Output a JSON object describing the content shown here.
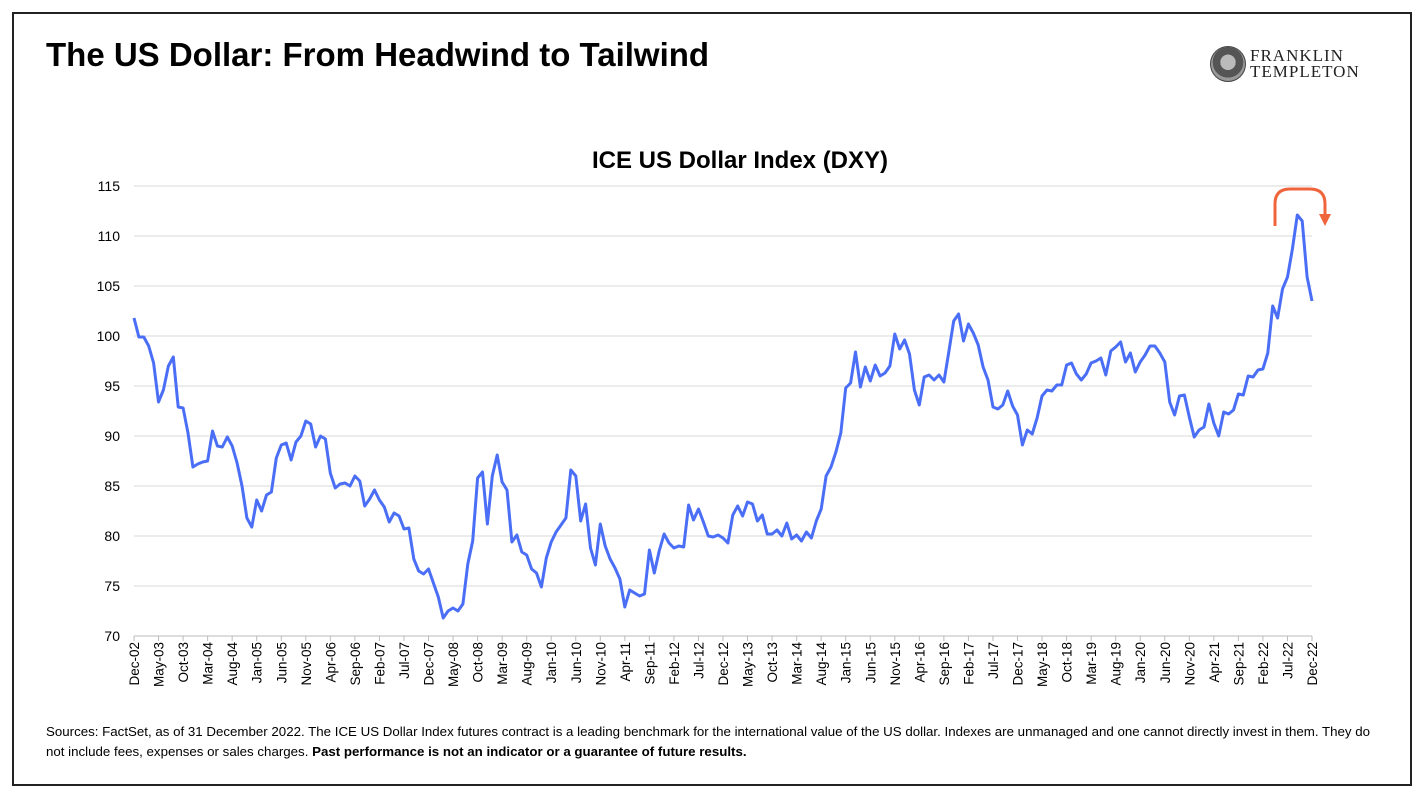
{
  "header": {
    "title": "The US Dollar: From Headwind to Tailwind",
    "logo_line1": "FRANKLIN",
    "logo_line2": "TEMPLETON"
  },
  "chart_data": {
    "type": "line",
    "title": "ICE US Dollar Index (DXY)",
    "xlabel": "",
    "ylabel": "",
    "ylim": [
      70,
      115
    ],
    "yticks": [
      "70",
      "75",
      "80",
      "85",
      "90",
      "95",
      "100",
      "105",
      "110",
      "115"
    ],
    "grid": true,
    "frequency": "monthly",
    "start": "Dec-02",
    "end": "Dec-22",
    "xtick_every_months": 5,
    "xticks": [
      "Dec-02",
      "May-03",
      "Oct-03",
      "Mar-04",
      "Aug-04",
      "Jan-05",
      "Jun-05",
      "Nov-05",
      "Apr-06",
      "Sep-06",
      "Feb-07",
      "Jul-07",
      "Dec-07",
      "May-08",
      "Oct-08",
      "Mar-09",
      "Aug-09",
      "Jan-10",
      "Jun-10",
      "Nov-10",
      "Apr-11",
      "Sep-11",
      "Feb-12",
      "Jul-12",
      "Dec-12",
      "May-13",
      "Oct-13",
      "Mar-14",
      "Aug-14",
      "Jan-15",
      "Jun-15",
      "Nov-15",
      "Apr-16",
      "Sep-16",
      "Feb-17",
      "Jul-17",
      "Dec-17",
      "May-18",
      "Oct-18",
      "Mar-19",
      "Aug-19",
      "Jan-20",
      "Jun-20",
      "Nov-20",
      "Apr-21",
      "Sep-21",
      "Feb-22",
      "Jul-22",
      "Dec-22"
    ],
    "series": [
      {
        "name": "ICE US Dollar Index (DXY)",
        "color": "#4a6ef5",
        "values": [
          101.8,
          99.9,
          99.9,
          99.0,
          97.3,
          93.4,
          94.6,
          97.0,
          97.9,
          92.9,
          92.8,
          90.3,
          86.9,
          87.2,
          87.4,
          87.5,
          90.5,
          89.0,
          88.9,
          89.9,
          89.0,
          87.3,
          85.0,
          81.8,
          80.9,
          83.6,
          82.5,
          84.1,
          84.4,
          87.8,
          89.1,
          89.3,
          87.6,
          89.4,
          90.0,
          91.5,
          91.2,
          88.9,
          90.0,
          89.7,
          86.3,
          84.8,
          85.2,
          85.3,
          85.0,
          86.0,
          85.5,
          83.0,
          83.7,
          84.6,
          83.6,
          82.9,
          81.4,
          82.3,
          82.0,
          80.7,
          80.8,
          77.7,
          76.5,
          76.2,
          76.7,
          75.3,
          73.9,
          71.8,
          72.5,
          72.8,
          72.5,
          73.2,
          77.2,
          79.5,
          85.8,
          86.4,
          81.2,
          86.0,
          88.1,
          85.4,
          84.6,
          79.4,
          80.1,
          78.4,
          78.1,
          76.7,
          76.3,
          74.9,
          77.8,
          79.4,
          80.4,
          81.1,
          81.8,
          86.6,
          86.0,
          81.5,
          83.2,
          78.8,
          77.1,
          81.2,
          79.0,
          77.7,
          76.8,
          75.7,
          72.9,
          74.6,
          74.3,
          74.0,
          74.2,
          78.6,
          76.3,
          78.5,
          80.2,
          79.3,
          78.8,
          79.0,
          78.9,
          83.1,
          81.6,
          82.7,
          81.4,
          80.0,
          79.9,
          80.1,
          79.8,
          79.3,
          82.1,
          83.0,
          82.0,
          83.4,
          83.2,
          81.5,
          82.1,
          80.2,
          80.2,
          80.6,
          80.0,
          81.3,
          79.7,
          80.1,
          79.5,
          80.4,
          79.8,
          81.5,
          82.7,
          86.0,
          86.9,
          88.4,
          90.3,
          94.8,
          95.3,
          98.4,
          94.9,
          96.9,
          95.5,
          97.1,
          96.0,
          96.3,
          97.0,
          100.2,
          98.7,
          99.6,
          98.2,
          94.6,
          93.1,
          95.9,
          96.1,
          95.6,
          96.1,
          95.4,
          98.4,
          101.5,
          102.2,
          99.5,
          101.2,
          100.3,
          99.1,
          96.9,
          95.6,
          92.9,
          92.7,
          93.1,
          94.5,
          93.0,
          92.1,
          89.1,
          90.6,
          90.2,
          91.8,
          94.0,
          94.6,
          94.5,
          95.1,
          95.1,
          97.1,
          97.3,
          96.2,
          95.6,
          96.2,
          97.3,
          97.5,
          97.8,
          96.1,
          98.5,
          98.9,
          99.4,
          97.4,
          98.3,
          96.4,
          97.4,
          98.1,
          99.0,
          99.0,
          98.3,
          97.4,
          93.4,
          92.1,
          94.0,
          94.1,
          91.9,
          89.9,
          90.6,
          90.9,
          93.2,
          91.3,
          90.0,
          92.4,
          92.2,
          92.6,
          94.2,
          94.1,
          96.0,
          95.9,
          96.6,
          96.7,
          98.3,
          103.0,
          101.8,
          104.7,
          105.9,
          108.7,
          112.1,
          111.5,
          105.9,
          103.5
        ]
      }
    ],
    "annotation": {
      "type": "curved-arrow",
      "meaning": "peak-and-reversal",
      "color": "#f0643c"
    }
  },
  "footer": {
    "sources": "Sources: FactSet, as of 31 December 2022. The ICE US Dollar Index futures contract is a leading benchmark for the international value of the US dollar. Indexes are unmanaged and one cannot directly invest in them. They do not include fees, expenses or sales charges. ",
    "disclaimer": "Past performance is not an indicator or a guarantee of future results."
  }
}
